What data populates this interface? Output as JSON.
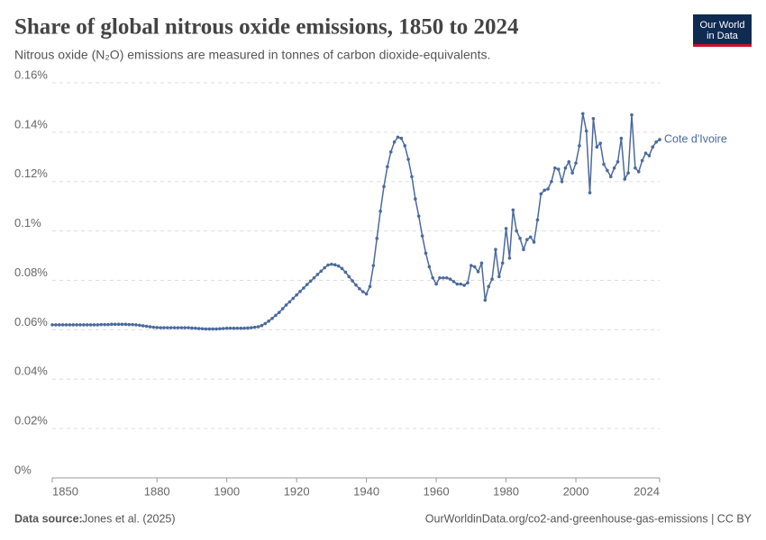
{
  "chart_data": {
    "type": "line",
    "title": "Share of global nitrous oxide emissions, 1850 to 2024",
    "subtitle": "Nitrous oxide (N₂O) emissions are measured in tonnes of carbon dioxide-equivalents.",
    "logo": [
      "Our World",
      "in Data"
    ],
    "source_label": "Data source:",
    "source": "Jones et al. (2025)",
    "url": "OurWorldinData.org/co2-and-greenhouse-gas-emissions | CC BY",
    "x": [
      1850,
      1851,
      1852,
      1853,
      1854,
      1855,
      1856,
      1857,
      1858,
      1859,
      1860,
      1861,
      1862,
      1863,
      1864,
      1865,
      1866,
      1867,
      1868,
      1869,
      1870,
      1871,
      1872,
      1873,
      1874,
      1875,
      1876,
      1877,
      1878,
      1879,
      1880,
      1881,
      1882,
      1883,
      1884,
      1885,
      1886,
      1887,
      1888,
      1889,
      1890,
      1891,
      1892,
      1893,
      1894,
      1895,
      1896,
      1897,
      1898,
      1899,
      1900,
      1901,
      1902,
      1903,
      1904,
      1905,
      1906,
      1907,
      1908,
      1909,
      1910,
      1911,
      1912,
      1913,
      1914,
      1915,
      1916,
      1917,
      1918,
      1919,
      1920,
      1921,
      1922,
      1923,
      1924,
      1925,
      1926,
      1927,
      1928,
      1929,
      1930,
      1931,
      1932,
      1933,
      1934,
      1935,
      1936,
      1937,
      1938,
      1939,
      1940,
      1941,
      1942,
      1943,
      1944,
      1945,
      1946,
      1947,
      1948,
      1949,
      1950,
      1951,
      1952,
      1953,
      1954,
      1955,
      1956,
      1957,
      1958,
      1959,
      1960,
      1961,
      1962,
      1963,
      1964,
      1965,
      1966,
      1967,
      1968,
      1969,
      1970,
      1971,
      1972,
      1973,
      1974,
      1975,
      1976,
      1977,
      1978,
      1979,
      1980,
      1981,
      1982,
      1983,
      1984,
      1985,
      1986,
      1987,
      1988,
      1989,
      1990,
      1991,
      1992,
      1993,
      1994,
      1995,
      1996,
      1997,
      1998,
      1999,
      2000,
      2001,
      2002,
      2003,
      2004,
      2005,
      2006,
      2007,
      2008,
      2009,
      2010,
      2011,
      2012,
      2013,
      2014,
      2015,
      2016,
      2017,
      2018,
      2019,
      2020,
      2021,
      2022,
      2023,
      2024
    ],
    "series": [
      {
        "name": "Cote d'Ivoire",
        "color": "#4c6a9c",
        "values": [
          0.062,
          0.062,
          0.062,
          0.062,
          0.062,
          0.062,
          0.062,
          0.062,
          0.062,
          0.062,
          0.062,
          0.062,
          0.062,
          0.062,
          0.0621,
          0.0621,
          0.0621,
          0.0622,
          0.0622,
          0.0622,
          0.0622,
          0.0622,
          0.0621,
          0.0621,
          0.062,
          0.0618,
          0.0616,
          0.0614,
          0.0612,
          0.061,
          0.0609,
          0.0608,
          0.0608,
          0.0608,
          0.0608,
          0.0608,
          0.0608,
          0.0608,
          0.0608,
          0.0608,
          0.0607,
          0.0606,
          0.0605,
          0.0604,
          0.0603,
          0.0603,
          0.0603,
          0.0603,
          0.0604,
          0.0605,
          0.0606,
          0.0606,
          0.0606,
          0.0606,
          0.0606,
          0.0606,
          0.0607,
          0.0608,
          0.061,
          0.0612,
          0.0617,
          0.0625,
          0.0635,
          0.0646,
          0.0658,
          0.067,
          0.0685,
          0.07,
          0.0713,
          0.0727,
          0.0741,
          0.0755,
          0.0769,
          0.0783,
          0.0797,
          0.081,
          0.0824,
          0.0837,
          0.0851,
          0.0862,
          0.0865,
          0.0863,
          0.0858,
          0.0848,
          0.0833,
          0.0815,
          0.0798,
          0.0781,
          0.0766,
          0.0754,
          0.0745,
          0.0775,
          0.086,
          0.097,
          0.108,
          0.118,
          0.126,
          0.132,
          0.136,
          0.138,
          0.1375,
          0.1345,
          0.129,
          0.122,
          0.113,
          0.106,
          0.098,
          0.091,
          0.0855,
          0.081,
          0.0785,
          0.081,
          0.081,
          0.081,
          0.0805,
          0.0795,
          0.0785,
          0.0785,
          0.078,
          0.079,
          0.086,
          0.0855,
          0.0835,
          0.087,
          0.072,
          0.0775,
          0.0805,
          0.0925,
          0.0815,
          0.087,
          0.101,
          0.089,
          0.1085,
          0.1,
          0.097,
          0.0925,
          0.0965,
          0.0975,
          0.0955,
          0.1045,
          0.115,
          0.1165,
          0.117,
          0.12,
          0.1255,
          0.125,
          0.12,
          0.1255,
          0.128,
          0.1235,
          0.1275,
          0.1345,
          0.1475,
          0.1405,
          0.1155,
          0.1455,
          0.134,
          0.1355,
          0.127,
          0.1245,
          0.122,
          0.1255,
          0.128,
          0.1375,
          0.121,
          0.1235,
          0.147,
          0.1255,
          0.124,
          0.1285,
          0.1315,
          0.1305,
          0.134,
          0.136,
          0.137
        ]
      }
    ],
    "xlim": [
      1850,
      2024
    ],
    "xticks": [
      1850,
      1880,
      1900,
      1920,
      1940,
      1960,
      1980,
      2000,
      2024
    ],
    "ylim": [
      0,
      0.16
    ],
    "yticks": [
      {
        "value": 0,
        "label": "0%"
      },
      {
        "value": 0.02,
        "label": "0.02%"
      },
      {
        "value": 0.04,
        "label": "0.04%"
      },
      {
        "value": 0.06,
        "label": "0.06%"
      },
      {
        "value": 0.08,
        "label": "0.08%"
      },
      {
        "value": 0.1,
        "label": "0.1%"
      },
      {
        "value": 0.12,
        "label": "0.12%"
      },
      {
        "value": 0.14,
        "label": "0.14%"
      },
      {
        "value": 0.16,
        "label": "0.16%"
      }
    ],
    "grid": true
  }
}
